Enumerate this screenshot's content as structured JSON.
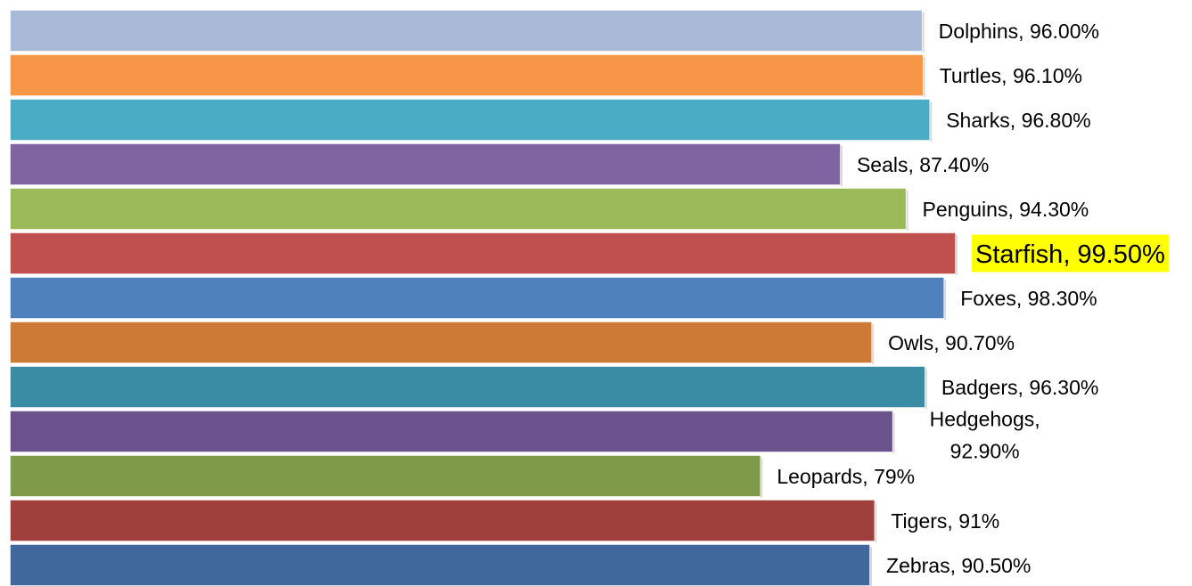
{
  "chart_data": {
    "type": "bar",
    "orientation": "horizontal",
    "title": "",
    "xlabel": "",
    "ylabel": "",
    "grid": false,
    "legend": "none",
    "xlim": [
      0,
      100
    ],
    "series": [
      {
        "values": [
          96.0,
          96.1,
          96.8,
          87.4,
          94.3,
          99.5,
          98.3,
          90.7,
          96.3,
          92.9,
          79,
          91,
          90.5
        ]
      }
    ],
    "categories": [
      "Dolphins",
      "Turtles",
      "Sharks",
      "Seals",
      "Penguins",
      "Starfish",
      "Foxes",
      "Owls",
      "Badgers",
      "Hedgehogs",
      "Leopards",
      "Tigers",
      "Zebras"
    ],
    "data_labels": [
      [
        "Dolphins, 96.00%"
      ],
      [
        "Turtles, 96.10%"
      ],
      [
        "Sharks, 96.80%"
      ],
      [
        "Seals, 87.40%"
      ],
      [
        "Penguins, 94.30%"
      ],
      [
        "Starfish, 99.50%"
      ],
      [
        "Foxes, 98.30%"
      ],
      [
        "Owls, 90.70%"
      ],
      [
        "Badgers, 96.30%"
      ],
      [
        "Hedgehogs,",
        "92.90%"
      ],
      [
        "Leopards, 79%"
      ],
      [
        "Tigers, 91%"
      ],
      [
        "Zebras, 90.50%"
      ]
    ],
    "colors": [
      "#A9B9D8",
      "#F79646",
      "#4BACC6",
      "#8064A2",
      "#9BBB59",
      "#C0504D",
      "#4F81BD",
      "#CD7A36",
      "#3A8CA4",
      "#6A528C",
      "#7F9A48",
      "#A0403D",
      "#41689C"
    ],
    "highlight": {
      "category": "Starfish",
      "background": "#FFFF00"
    }
  }
}
